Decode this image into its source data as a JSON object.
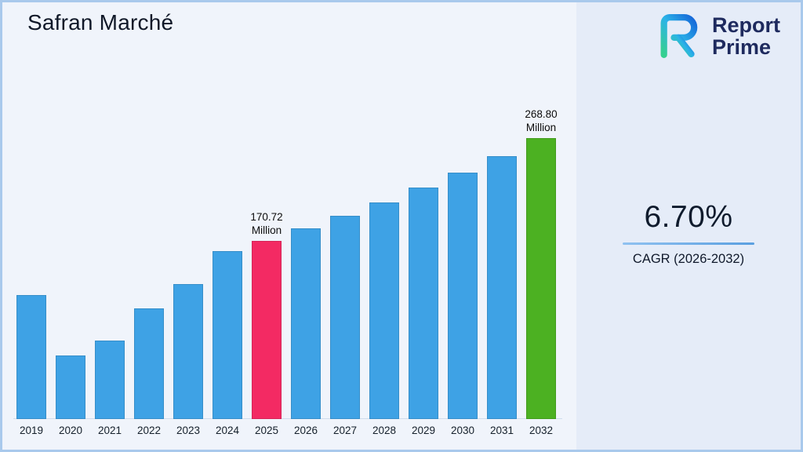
{
  "title": "Safran Marché",
  "logo": {
    "line1": "Report",
    "line2": "Prime"
  },
  "cagr": {
    "value": "6.70%",
    "label": "CAGR (2026-2032)"
  },
  "chart_data": {
    "type": "bar",
    "title": "Safran Marché",
    "unit": "Million",
    "categories": [
      "2019",
      "2020",
      "2021",
      "2022",
      "2023",
      "2024",
      "2025",
      "2026",
      "2027",
      "2028",
      "2029",
      "2030",
      "2031",
      "2032"
    ],
    "values": [
      119,
      61,
      75,
      106,
      129,
      161,
      170.72,
      182.2,
      194.4,
      207.4,
      221.3,
      236.1,
      251.9,
      268.8
    ],
    "bar_color": "#3ea2e5",
    "highlights": {
      "2025": {
        "color": "#f32a63",
        "label_line1": "170.72",
        "label_line2": "Million"
      },
      "2032": {
        "color": "#4cb122",
        "label_line1": "268.80",
        "label_line2": "Million"
      }
    },
    "xlabel": "",
    "ylabel": "",
    "ylim": [
      0,
      280
    ],
    "grid": false,
    "legend": "none"
  },
  "colors": {
    "accent_blue": "#3ea2e5",
    "highlight_pink": "#f32a63",
    "highlight_green": "#4cb122",
    "navy_text": "#1e2a5e",
    "background": "#f0f4fb"
  }
}
